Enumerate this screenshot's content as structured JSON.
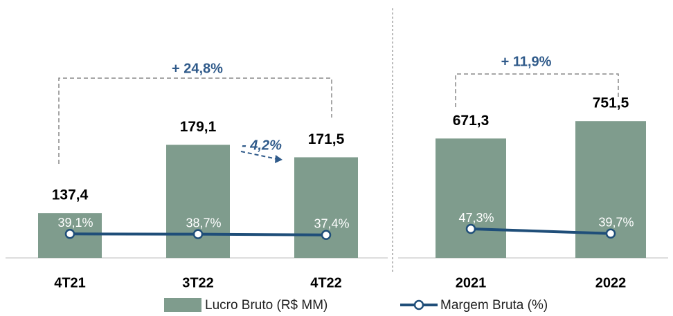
{
  "chart_data": [
    {
      "type": "bar",
      "categories": [
        "4T21",
        "3T22",
        "4T22"
      ],
      "series": [
        {
          "name": "Lucro Bruto (R$ MM)",
          "color": "#7f9c8d",
          "values": [
            137.4,
            179.1,
            171.5
          ],
          "value_labels": [
            "137,4",
            "179,1",
            "171,5"
          ]
        },
        {
          "name": "Margem Bruta (%)",
          "color": "#1f4e79",
          "axis": "y2",
          "values": [
            39.1,
            38.7,
            37.4
          ],
          "value_labels": [
            "39,1%",
            "38,7%",
            "37,4%"
          ]
        }
      ],
      "ylim": [
        110,
        200
      ],
      "y2lim": [
        0,
        240
      ],
      "annotations": [
        "+ 24,8%",
        "- 4,2%"
      ]
    },
    {
      "type": "bar",
      "categories": [
        "2021",
        "2022"
      ],
      "series": [
        {
          "color": "#7f9c8d",
          "values": [
            671.3,
            751.5
          ],
          "value_labels": [
            "671,3",
            "751,5"
          ]
        },
        {
          "color": "#1f4e79",
          "axis": "y2",
          "values": [
            47.3,
            39.7
          ],
          "value_labels": [
            "47,3%",
            "39,7%"
          ]
        }
      ],
      "ylim": [
        120,
        800
      ],
      "y2lim": [
        0,
        240
      ],
      "annotations": [
        "+ 11,9%"
      ]
    }
  ]
}
